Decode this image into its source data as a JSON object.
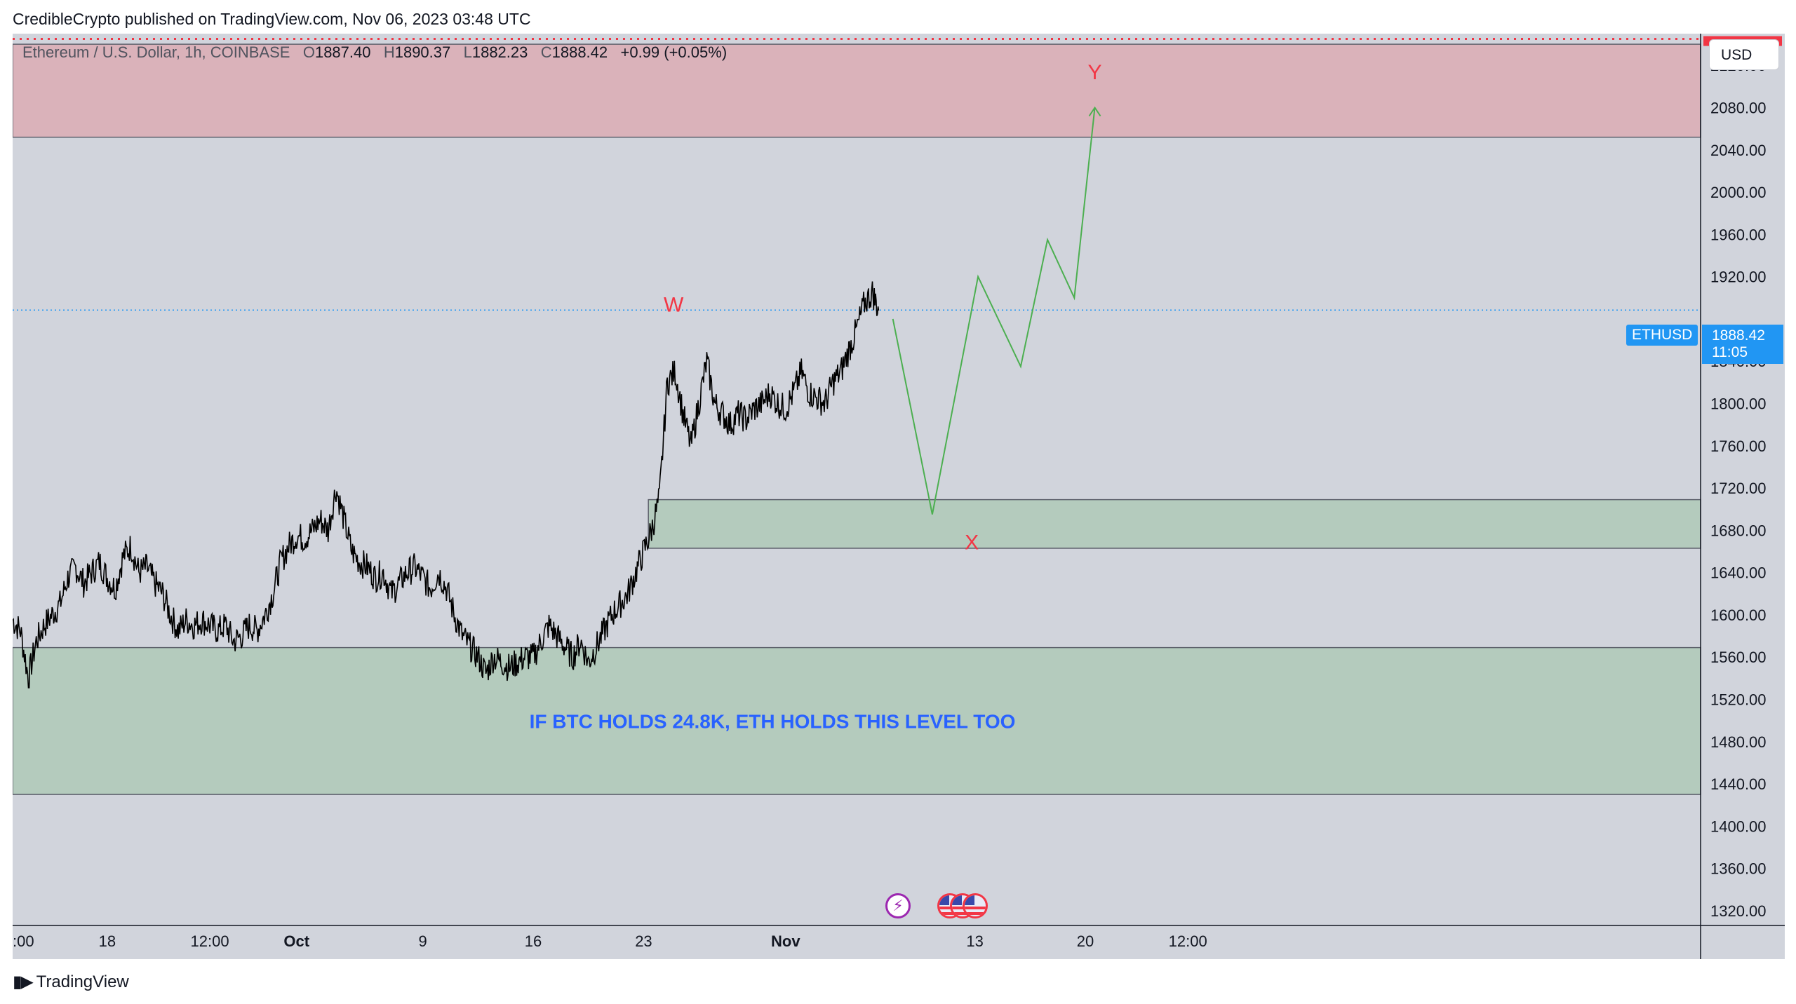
{
  "header": {
    "publisher_line": "CredibleCrypto published on TradingView.com, Nov 06, 2023 03:48 UTC"
  },
  "legend": {
    "symbol": "Ethereum / U.S. Dollar, 1h, COINBASE",
    "o_key": "O",
    "open": "1887.40",
    "h_key": "H",
    "high": "1890.37",
    "l_key": "L",
    "low": "1882.23",
    "c_key": "C",
    "close": "1888.42",
    "change": "+0.99 (+0.05%)"
  },
  "currency_button": "USD",
  "symbol_tag": "ETHUSD",
  "price_tag": {
    "price": "1888.42",
    "countdown": "11:05"
  },
  "branding": {
    "logo_text": "TradingView"
  },
  "colors": {
    "background": "#d1d4dc",
    "resistance_zone": "#dab2ba",
    "support_zone": "#b4cbbd",
    "projection_line": "#4caf50",
    "wave_label": "#f23645",
    "annotation_text": "#2962ff",
    "price_line": "#2196f3",
    "dotted_red_line": "#f23645"
  },
  "chart_data": {
    "type": "line",
    "title": "Ethereum / U.S. Dollar, 1h, COINBASE",
    "y_axis": {
      "ticks": [
        "2120.00",
        "2080.00",
        "2040.00",
        "2000.00",
        "1960.00",
        "1920.00",
        "1840.00",
        "1800.00",
        "1760.00",
        "1720.00",
        "1680.00",
        "1640.00",
        "1600.00",
        "1560.00",
        "1520.00",
        "1480.00",
        "1440.00",
        "1400.00",
        "1360.00",
        "1320.00"
      ],
      "range": [
        1306,
        2150
      ]
    },
    "x_axis": {
      "ticks": [
        {
          "label": ":00",
          "x": 0.0
        },
        {
          "label": "18",
          "x": 6.0
        },
        {
          "label": "12:00",
          "x": 12.5
        },
        {
          "label": "Oct",
          "x": 18.0
        },
        {
          "label": "9",
          "x": 26.0
        },
        {
          "label": "16",
          "x": 33.0
        },
        {
          "label": "23",
          "x": 40.0
        },
        {
          "label": "Nov",
          "x": 49.0
        },
        {
          "label": "13",
          "x": 61.0
        },
        {
          "label": "20",
          "x": 68.0
        },
        {
          "label": "12:00",
          "x": 74.5
        }
      ],
      "range": [
        0,
        107
      ],
      "unit": "days from first visible label"
    },
    "price_path": [
      [
        0.0,
        1595
      ],
      [
        0.5,
        1585
      ],
      [
        1.0,
        1540
      ],
      [
        1.5,
        1575
      ],
      [
        2.0,
        1590
      ],
      [
        2.5,
        1600
      ],
      [
        3.0,
        1610
      ],
      [
        3.5,
        1635
      ],
      [
        4.0,
        1645
      ],
      [
        4.5,
        1630
      ],
      [
        5.0,
        1640
      ],
      [
        5.5,
        1650
      ],
      [
        6.0,
        1635
      ],
      [
        6.5,
        1625
      ],
      [
        7.0,
        1655
      ],
      [
        7.5,
        1665
      ],
      [
        8.0,
        1640
      ],
      [
        8.5,
        1645
      ],
      [
        9.0,
        1630
      ],
      [
        9.5,
        1620
      ],
      [
        10.0,
        1600
      ],
      [
        10.5,
        1585
      ],
      [
        11.0,
        1595
      ],
      [
        11.5,
        1590
      ],
      [
        12.0,
        1595
      ],
      [
        12.5,
        1590
      ],
      [
        13.0,
        1585
      ],
      [
        13.5,
        1590
      ],
      [
        14.0,
        1575
      ],
      [
        14.5,
        1580
      ],
      [
        15.0,
        1590
      ],
      [
        15.5,
        1585
      ],
      [
        16.0,
        1600
      ],
      [
        16.5,
        1620
      ],
      [
        17.0,
        1650
      ],
      [
        17.5,
        1665
      ],
      [
        18.0,
        1675
      ],
      [
        18.5,
        1672
      ],
      [
        19.0,
        1680
      ],
      [
        19.5,
        1690
      ],
      [
        20.0,
        1680
      ],
      [
        20.5,
        1720
      ],
      [
        21.0,
        1690
      ],
      [
        21.5,
        1660
      ],
      [
        22.0,
        1650
      ],
      [
        22.5,
        1645
      ],
      [
        23.0,
        1635
      ],
      [
        23.5,
        1640
      ],
      [
        24.0,
        1620
      ],
      [
        24.5,
        1630
      ],
      [
        25.0,
        1640
      ],
      [
        25.5,
        1645
      ],
      [
        26.0,
        1635
      ],
      [
        26.5,
        1625
      ],
      [
        27.0,
        1640
      ],
      [
        27.5,
        1625
      ],
      [
        28.0,
        1600
      ],
      [
        28.5,
        1580
      ],
      [
        29.0,
        1570
      ],
      [
        29.5,
        1560
      ],
      [
        30.0,
        1545
      ],
      [
        30.5,
        1560
      ],
      [
        31.0,
        1555
      ],
      [
        31.5,
        1550
      ],
      [
        32.0,
        1555
      ],
      [
        32.5,
        1560
      ],
      [
        33.0,
        1560
      ],
      [
        33.5,
        1575
      ],
      [
        34.0,
        1590
      ],
      [
        34.5,
        1580
      ],
      [
        35.0,
        1570
      ],
      [
        35.5,
        1560
      ],
      [
        36.0,
        1575
      ],
      [
        36.5,
        1555
      ],
      [
        37.0,
        1570
      ],
      [
        37.5,
        1585
      ],
      [
        38.0,
        1600
      ],
      [
        38.5,
        1610
      ],
      [
        39.0,
        1620
      ],
      [
        39.5,
        1640
      ],
      [
        40.0,
        1660
      ],
      [
        40.5,
        1680
      ],
      [
        41.0,
        1710
      ],
      [
        41.5,
        1820
      ],
      [
        42.0,
        1830
      ],
      [
        42.5,
        1790
      ],
      [
        43.0,
        1760
      ],
      [
        43.5,
        1800
      ],
      [
        44.0,
        1840
      ],
      [
        44.5,
        1800
      ],
      [
        45.0,
        1790
      ],
      [
        45.5,
        1780
      ],
      [
        46.0,
        1790
      ],
      [
        46.5,
        1785
      ],
      [
        47.0,
        1795
      ],
      [
        47.5,
        1800
      ],
      [
        48.0,
        1810
      ],
      [
        48.5,
        1800
      ],
      [
        49.0,
        1795
      ],
      [
        49.5,
        1810
      ],
      [
        50.0,
        1830
      ],
      [
        50.5,
        1810
      ],
      [
        51.0,
        1805
      ],
      [
        51.5,
        1800
      ],
      [
        52.0,
        1820
      ],
      [
        52.5,
        1830
      ],
      [
        53.0,
        1850
      ],
      [
        53.5,
        1870
      ],
      [
        54.0,
        1895
      ],
      [
        54.5,
        1905
      ],
      [
        54.9,
        1888
      ]
    ],
    "projection_path": [
      [
        55.8,
        1880
      ],
      [
        58.3,
        1695
      ],
      [
        61.2,
        1920
      ],
      [
        63.9,
        1835
      ],
      [
        65.6,
        1955
      ],
      [
        67.3,
        1900
      ],
      [
        68.6,
        2080
      ]
    ],
    "zones": [
      {
        "kind": "resistance",
        "from": 2052,
        "to": 2140
      },
      {
        "kind": "support",
        "from": 1663,
        "to": 1709,
        "x_start": 40.3
      },
      {
        "kind": "support",
        "from": 1430,
        "to": 1569,
        "label": "IF BTC HOLDS 24.8K, ETH HOLDS THIS LEVEL TOO"
      }
    ],
    "wave_labels": [
      {
        "text": "W",
        "x": 41.9,
        "y": 1887
      },
      {
        "text": "X",
        "x": 60.8,
        "y": 1662
      },
      {
        "text": "Y",
        "x": 68.6,
        "y": 2107
      }
    ],
    "current_price": 1888.42,
    "dotted_level": 2145,
    "grid": false,
    "legend": "top-left"
  }
}
